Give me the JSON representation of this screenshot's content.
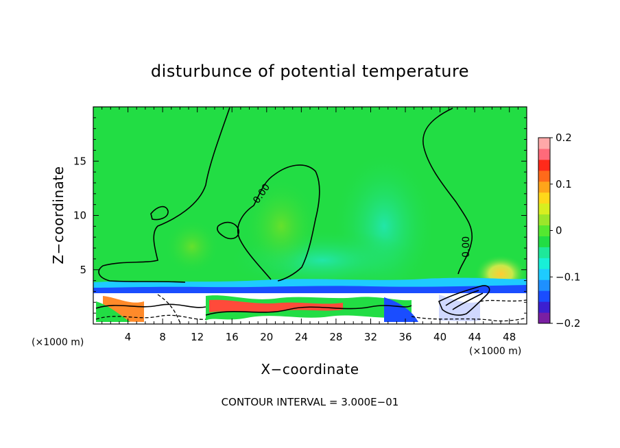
{
  "chart_data": {
    "type": "heatmap",
    "title": "disturbunce of potential temperature",
    "xlabel": "X−coordinate",
    "ylabel": "Z−coordinate",
    "x_unit_left": "(×1000 m)",
    "x_unit_right": "(×1000 m)",
    "x_ticks": [
      "4",
      "8",
      "12",
      "16",
      "20",
      "24",
      "28",
      "32",
      "36",
      "40",
      "44",
      "48"
    ],
    "y_ticks": [
      "5",
      "10",
      "15"
    ],
    "xlim": [
      0,
      50
    ],
    "ylim": [
      0,
      20
    ],
    "colorbar": {
      "ticks": [
        "0.2",
        "0.1",
        "0",
        "−0.1",
        "−0.2"
      ],
      "min": -0.2,
      "max": 0.2,
      "colors": [
        "#7a1fa2",
        "#3c1fd0",
        "#1a4dff",
        "#1e90ff",
        "#1ecbff",
        "#18f0d8",
        "#1ee89a",
        "#22dd44",
        "#55e830",
        "#9ce62a",
        "#d8ee20",
        "#ffd81a",
        "#ffa51a",
        "#ff6a1a",
        "#ff2a1a",
        "#ff6a7a",
        "#ffa8a8"
      ]
    },
    "contour_labels": [
      "0.00",
      "0.00"
    ],
    "grid": false,
    "note": "CONTOUR INTERVAL = 3.000E−01"
  }
}
